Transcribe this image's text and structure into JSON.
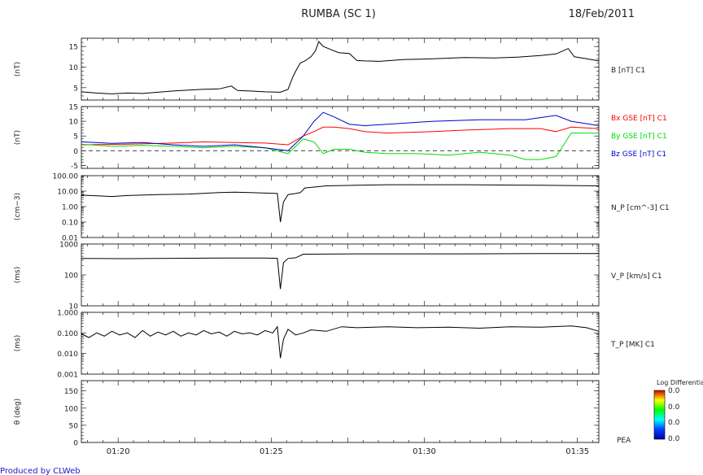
{
  "header": {
    "title": "RUMBA (SC 1)",
    "date": "18/Feb/2011",
    "footer": "Produced by CLWeb"
  },
  "colorbar": {
    "title": "Log Differential",
    "ticks": [
      "0.0",
      "0.0",
      "0.0",
      "0.0"
    ],
    "xlabel": "PEA"
  },
  "chart_data": [
    {
      "type": "line",
      "ylabel": "(nT)",
      "yticks": [
        "5",
        "10",
        "15"
      ],
      "ylim": [
        2,
        17
      ],
      "series": [
        {
          "name": "B [nT] C1",
          "color": "#000000",
          "points": [
            [
              0,
              4.0
            ],
            [
              1,
              3.7
            ],
            [
              2,
              3.5
            ],
            [
              3,
              3.7
            ],
            [
              4,
              3.6
            ],
            [
              5,
              3.9
            ],
            [
              6,
              4.2
            ],
            [
              7,
              4.4
            ],
            [
              8,
              4.6
            ],
            [
              9,
              4.7
            ],
            [
              9.8,
              5.4
            ],
            [
              10.2,
              4.3
            ],
            [
              11,
              4.2
            ],
            [
              12,
              4.0
            ],
            [
              13,
              3.9
            ],
            [
              13.5,
              4.6
            ],
            [
              13.8,
              7.5
            ],
            [
              14.0,
              9.0
            ],
            [
              14.3,
              11.0
            ],
            [
              14.6,
              11.5
            ],
            [
              15.0,
              12.5
            ],
            [
              15.3,
              14.0
            ],
            [
              15.5,
              16.2
            ],
            [
              15.8,
              15.0
            ],
            [
              16.2,
              14.4
            ],
            [
              16.8,
              13.5
            ],
            [
              17.5,
              13.3
            ],
            [
              18.0,
              11.6
            ],
            [
              18.5,
              11.5
            ],
            [
              19.5,
              11.4
            ],
            [
              21.0,
              11.8
            ],
            [
              23.0,
              12.0
            ],
            [
              25.0,
              12.3
            ],
            [
              27.0,
              12.2
            ],
            [
              28.5,
              12.4
            ],
            [
              30.0,
              12.8
            ],
            [
              31.0,
              13.2
            ],
            [
              31.8,
              14.5
            ],
            [
              32.2,
              12.5
            ],
            [
              33.0,
              12.0
            ],
            [
              33.8,
              11.5
            ]
          ]
        }
      ]
    },
    {
      "type": "line",
      "ylabel": "(nT)",
      "yticks": [
        "-5",
        "0",
        "5",
        "10",
        "15"
      ],
      "ylim": [
        -6,
        15
      ],
      "zero_line": true,
      "series": [
        {
          "name": "Bx GSE [nT] C1",
          "color": "#ff0000",
          "points": [
            [
              0,
              2.0
            ],
            [
              3,
              2.2
            ],
            [
              6,
              2.6
            ],
            [
              8,
              3.0
            ],
            [
              10,
              2.8
            ],
            [
              12,
              2.6
            ],
            [
              13.5,
              2.0
            ],
            [
              14.5,
              5.0
            ],
            [
              15.2,
              6.5
            ],
            [
              15.8,
              8.0
            ],
            [
              16.5,
              8.0
            ],
            [
              17.5,
              7.5
            ],
            [
              18.5,
              6.5
            ],
            [
              20,
              6.0
            ],
            [
              23,
              6.5
            ],
            [
              25,
              7.0
            ],
            [
              28,
              7.5
            ],
            [
              30,
              7.5
            ],
            [
              31,
              6.5
            ],
            [
              32,
              8.0
            ],
            [
              33.8,
              7.5
            ]
          ]
        },
        {
          "name": "By GSE [nT] C1",
          "color": "#00dd00",
          "points": [
            [
              0,
              2.2
            ],
            [
              2,
              1.5
            ],
            [
              4,
              1.8
            ],
            [
              6,
              1.5
            ],
            [
              8,
              1.0
            ],
            [
              10,
              1.5
            ],
            [
              12,
              1.0
            ],
            [
              13.5,
              -1.0
            ],
            [
              14.5,
              4.0
            ],
            [
              15.2,
              3.0
            ],
            [
              15.8,
              -1.0
            ],
            [
              16.5,
              0.5
            ],
            [
              17.5,
              0.5
            ],
            [
              18.5,
              -0.5
            ],
            [
              20,
              -1.0
            ],
            [
              22,
              -1.0
            ],
            [
              24,
              -1.5
            ],
            [
              26,
              -0.5
            ],
            [
              28,
              -1.5
            ],
            [
              29,
              -3.0
            ],
            [
              30,
              -3.0
            ],
            [
              31,
              -2.0
            ],
            [
              32,
              6.0
            ],
            [
              33.8,
              6.0
            ]
          ]
        },
        {
          "name": "Bz GSE [nT] C1",
          "color": "#0000cc",
          "points": [
            [
              0,
              3.0
            ],
            [
              2,
              2.5
            ],
            [
              4,
              2.8
            ],
            [
              6,
              2.0
            ],
            [
              8,
              1.5
            ],
            [
              10,
              2.0
            ],
            [
              12,
              1.0
            ],
            [
              13.5,
              0.0
            ],
            [
              14.5,
              5.0
            ],
            [
              15.2,
              10.0
            ],
            [
              15.8,
              13.0
            ],
            [
              16.5,
              11.5
            ],
            [
              17.5,
              9.0
            ],
            [
              18.5,
              8.5
            ],
            [
              20,
              9.0
            ],
            [
              23,
              10.0
            ],
            [
              26,
              10.5
            ],
            [
              29,
              10.5
            ],
            [
              31,
              12.0
            ],
            [
              32,
              10.0
            ],
            [
              33.8,
              8.5
            ]
          ]
        }
      ]
    },
    {
      "type": "line",
      "ylabel": "(cm−3)",
      "yticks": [
        "0.01",
        "0.10",
        "1.00",
        "10.00",
        "100.00"
      ],
      "ylim": [
        0.01,
        100
      ],
      "log": true,
      "series": [
        {
          "name": "N_P [cm^-3] C1",
          "color": "#000000",
          "points": [
            [
              0,
              5.5
            ],
            [
              1,
              5.0
            ],
            [
              2,
              4.5
            ],
            [
              3,
              5.2
            ],
            [
              5,
              6.0
            ],
            [
              7,
              6.5
            ],
            [
              9,
              8.0
            ],
            [
              10,
              8.5
            ],
            [
              11,
              8.0
            ],
            [
              12,
              7.5
            ],
            [
              12.8,
              7.0
            ],
            [
              13.0,
              0.1
            ],
            [
              13.2,
              2.0
            ],
            [
              13.5,
              6.0
            ],
            [
              14.0,
              7.0
            ],
            [
              14.3,
              8.0
            ],
            [
              14.6,
              16.0
            ],
            [
              16,
              22.0
            ],
            [
              18,
              24.0
            ],
            [
              20,
              26.0
            ],
            [
              25,
              26.0
            ],
            [
              30,
              24.0
            ],
            [
              33.8,
              22.0
            ]
          ]
        }
      ]
    },
    {
      "type": "line",
      "ylabel": "(ms)",
      "yticks": [
        "10",
        "100",
        "1000"
      ],
      "ylim": [
        10,
        1000
      ],
      "log": true,
      "series": [
        {
          "name": "V_P [km/s] C1",
          "color": "#000000",
          "points": [
            [
              0,
              340
            ],
            [
              3,
              335
            ],
            [
              6,
              345
            ],
            [
              9,
              350
            ],
            [
              12,
              350
            ],
            [
              12.8,
              345
            ],
            [
              13.0,
              35
            ],
            [
              13.2,
              250
            ],
            [
              13.5,
              340
            ],
            [
              14.0,
              360
            ],
            [
              14.5,
              470
            ],
            [
              18,
              480
            ],
            [
              25,
              480
            ],
            [
              30,
              490
            ],
            [
              33.8,
              490
            ]
          ]
        }
      ]
    },
    {
      "type": "line",
      "ylabel": "(ms)",
      "yticks": [
        "0.001",
        "0.010",
        "0.100",
        "1.000"
      ],
      "ylim": [
        0.001,
        1
      ],
      "log": true,
      "series": [
        {
          "name": "T_P [MK] C1",
          "color": "#000000",
          "points": [
            [
              0,
              0.09
            ],
            [
              0.5,
              0.06
            ],
            [
              1,
              0.1
            ],
            [
              1.5,
              0.07
            ],
            [
              2,
              0.12
            ],
            [
              2.5,
              0.08
            ],
            [
              3,
              0.1
            ],
            [
              3.5,
              0.06
            ],
            [
              4,
              0.13
            ],
            [
              4.5,
              0.07
            ],
            [
              5,
              0.11
            ],
            [
              5.5,
              0.08
            ],
            [
              6,
              0.12
            ],
            [
              6.5,
              0.07
            ],
            [
              7,
              0.1
            ],
            [
              7.5,
              0.08
            ],
            [
              8,
              0.13
            ],
            [
              8.5,
              0.09
            ],
            [
              9,
              0.11
            ],
            [
              9.5,
              0.07
            ],
            [
              10,
              0.12
            ],
            [
              10.5,
              0.09
            ],
            [
              11,
              0.1
            ],
            [
              11.5,
              0.08
            ],
            [
              12,
              0.13
            ],
            [
              12.5,
              0.1
            ],
            [
              12.8,
              0.2
            ],
            [
              13.0,
              0.006
            ],
            [
              13.2,
              0.05
            ],
            [
              13.5,
              0.15
            ],
            [
              14.0,
              0.08
            ],
            [
              14.5,
              0.1
            ],
            [
              15,
              0.14
            ],
            [
              16,
              0.12
            ],
            [
              17,
              0.2
            ],
            [
              18,
              0.18
            ],
            [
              20,
              0.2
            ],
            [
              22,
              0.18
            ],
            [
              24,
              0.19
            ],
            [
              26,
              0.17
            ],
            [
              28,
              0.2
            ],
            [
              30,
              0.19
            ],
            [
              32,
              0.22
            ],
            [
              33,
              0.18
            ],
            [
              33.8,
              0.12
            ]
          ]
        }
      ]
    },
    {
      "type": "heatmap",
      "ylabel": "θ (deg)",
      "yticks": [
        "0",
        "50",
        "100",
        "150"
      ],
      "ylim": [
        0,
        180
      ],
      "values": []
    }
  ],
  "x_axis": {
    "ticks": [
      {
        "t": 2.4,
        "label": "01:20"
      },
      {
        "t": 12.4,
        "label": "01:25"
      },
      {
        "t": 22.4,
        "label": "01:30"
      },
      {
        "t": 32.4,
        "label": "01:35"
      }
    ],
    "xlim": [
      0,
      33.8
    ],
    "unit": "minutes since 01:17:36"
  }
}
